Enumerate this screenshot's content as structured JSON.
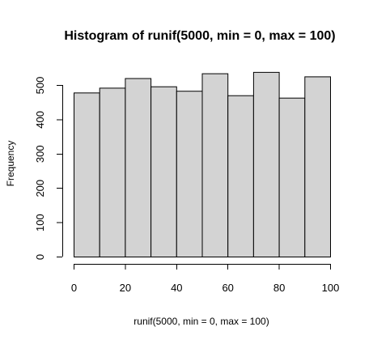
{
  "chart_data": {
    "type": "bar",
    "title": "Histogram of runif(5000, min = 0, max = 100)",
    "xlabel": "runif(5000, min = 0, max = 100)",
    "ylabel": "Frequency",
    "bins": [
      {
        "from": 0,
        "to": 10,
        "value": 478
      },
      {
        "from": 10,
        "to": 20,
        "value": 492
      },
      {
        "from": 20,
        "to": 30,
        "value": 520
      },
      {
        "from": 30,
        "to": 40,
        "value": 496
      },
      {
        "from": 40,
        "to": 50,
        "value": 483
      },
      {
        "from": 50,
        "to": 60,
        "value": 534
      },
      {
        "from": 60,
        "to": 70,
        "value": 470
      },
      {
        "from": 70,
        "to": 80,
        "value": 538
      },
      {
        "from": 80,
        "to": 90,
        "value": 463
      },
      {
        "from": 90,
        "to": 100,
        "value": 525
      }
    ],
    "xlim": [
      0,
      100
    ],
    "ylim": [
      0,
      500
    ],
    "x_ticks": [
      0,
      20,
      40,
      60,
      80,
      100
    ],
    "x_tick_labels": [
      "0",
      "20",
      "40",
      "60",
      "80",
      "100"
    ],
    "y_ticks": [
      0,
      100,
      200,
      300,
      400,
      500
    ],
    "y_tick_labels": [
      "0",
      "100",
      "200",
      "300",
      "400",
      "500"
    ],
    "bar_fill": "#d3d3d3",
    "bar_stroke": "#000000",
    "grid": false,
    "legend": "none"
  }
}
